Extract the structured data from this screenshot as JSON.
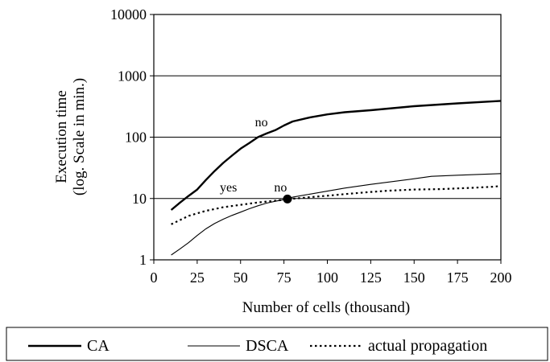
{
  "chart_data": {
    "type": "line",
    "title": "",
    "xlabel": "Number of cells (thousand)",
    "ylabel_line1": "Execution time",
    "ylabel_line2": "(log. Scale in min.)",
    "xlim": [
      0,
      200
    ],
    "ylim": [
      1,
      10000
    ],
    "y_scale": "log",
    "x_ticks": [
      "0",
      "25",
      "50",
      "75",
      "100",
      "125",
      "150",
      "175",
      "200"
    ],
    "y_ticks": [
      "1",
      "10",
      "100",
      "1000",
      "10000"
    ],
    "grid": "horizontal",
    "legend_position": "bottom",
    "series": [
      {
        "name": "CA",
        "style": "thick-solid",
        "x": [
          10,
          15,
          20,
          25,
          30,
          35,
          40,
          45,
          50,
          55,
          60,
          65,
          70,
          75,
          80,
          90,
          100,
          110,
          125,
          150,
          175,
          200
        ],
        "y": [
          6.5,
          8.5,
          11,
          14,
          20,
          28,
          38,
          50,
          65,
          80,
          100,
          115,
          130,
          155,
          180,
          210,
          235,
          255,
          275,
          320,
          355,
          390
        ]
      },
      {
        "name": "DSCA",
        "style": "thin-solid",
        "x": [
          10,
          15,
          20,
          25,
          30,
          35,
          40,
          45,
          50,
          55,
          60,
          65,
          70,
          75,
          80,
          90,
          100,
          110,
          125,
          150,
          160,
          175,
          200
        ],
        "y": [
          1.2,
          1.5,
          1.9,
          2.5,
          3.2,
          3.9,
          4.6,
          5.3,
          6.0,
          6.8,
          7.6,
          8.4,
          9.0,
          9.6,
          10.5,
          11.8,
          13.2,
          14.8,
          17,
          21,
          23,
          24,
          25.5
        ]
      },
      {
        "name": "actual propagation",
        "style": "dotted",
        "x": [
          10,
          20,
          30,
          40,
          50,
          60,
          70,
          80,
          90,
          100,
          110,
          125,
          135,
          150,
          165,
          175,
          185,
          195,
          200
        ],
        "y": [
          3.8,
          5.2,
          6.3,
          7.2,
          7.9,
          8.6,
          9.2,
          9.9,
          10.5,
          11.1,
          11.8,
          12.8,
          13.4,
          14.0,
          14.2,
          14.6,
          15,
          15.5,
          16
        ]
      }
    ],
    "annotations": [
      {
        "text": "no",
        "x": 62,
        "y": 150
      },
      {
        "text": "yes",
        "x": 43,
        "y": 13
      },
      {
        "text": "no",
        "x": 73,
        "y": 13
      }
    ],
    "marker": {
      "x": 77,
      "y": 9.8
    }
  }
}
